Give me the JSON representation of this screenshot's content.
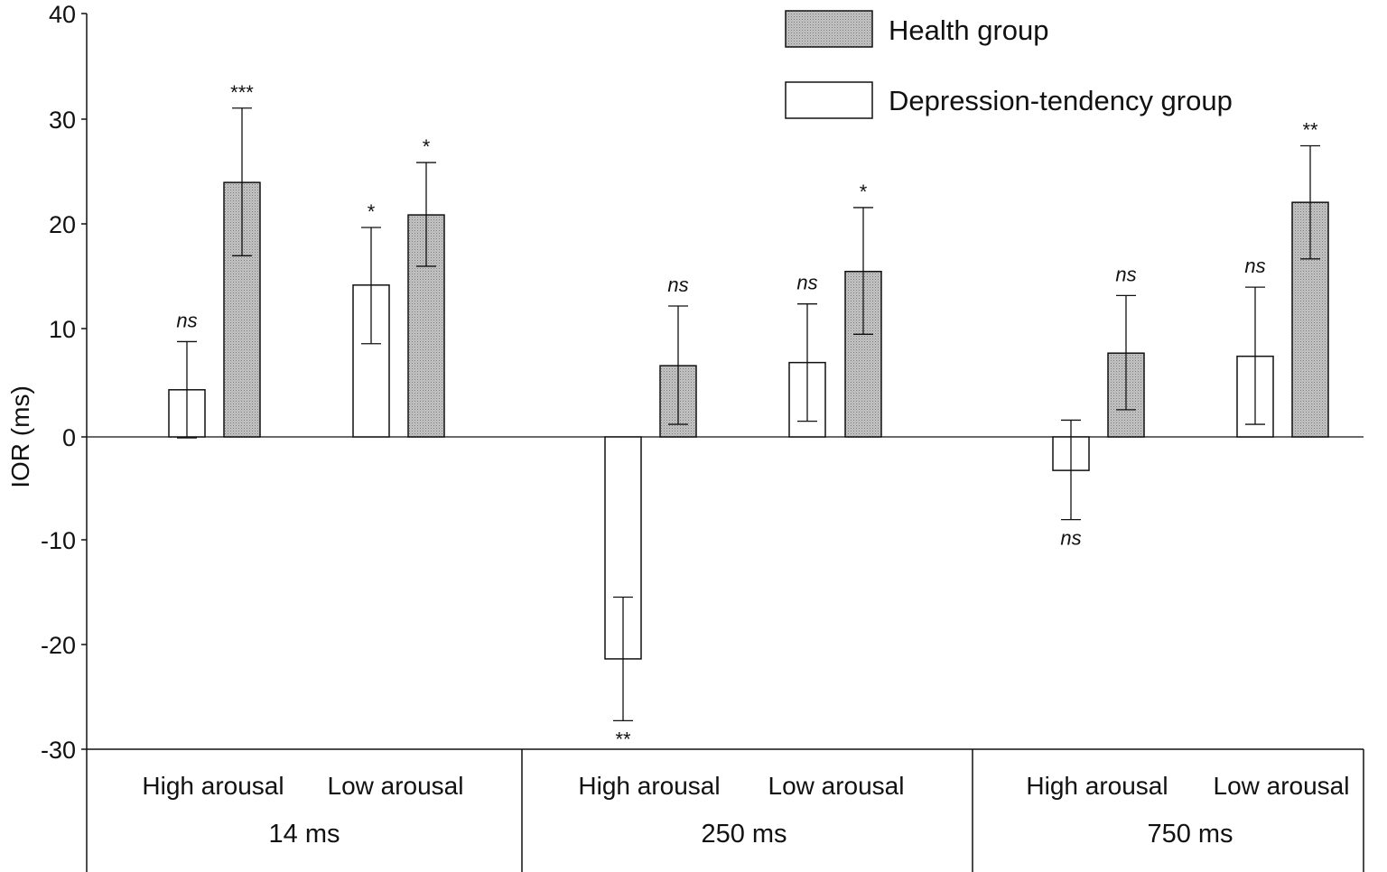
{
  "chart_data": {
    "type": "bar",
    "title": "",
    "xlabel": "",
    "ylabel": "IOR (ms)",
    "ylim": [
      -30,
      40
    ],
    "yticks": [
      "40",
      "30",
      "20",
      "10",
      "0",
      "-10",
      "-20",
      "-30"
    ],
    "ytick_values": [
      40,
      30,
      20,
      10,
      0,
      -10,
      -20,
      -30
    ],
    "groups": [
      "14 ms",
      "250 ms",
      "750 ms"
    ],
    "conditions": [
      "High arousal",
      "Low arousal"
    ],
    "legend_position": "top-right",
    "series": [
      {
        "name": "Health group",
        "style": "shaded",
        "fill": "#bdbdbd",
        "values": [
          24.3,
          21.2,
          6.8,
          15.8,
          8.0,
          22.4
        ],
        "err_low": [
          17.3,
          16.3,
          1.2,
          9.8,
          2.6,
          17.0
        ],
        "err_high": [
          31.4,
          26.2,
          12.5,
          21.9,
          13.5,
          27.8
        ],
        "sig": [
          "***",
          "*",
          "ns",
          "*",
          "ns",
          "**"
        ]
      },
      {
        "name": "Depression-tendency group",
        "style": "open",
        "fill": "#ffffff",
        "values": [
          4.5,
          14.5,
          -21.2,
          7.1,
          -3.2,
          7.7
        ],
        "err_low": [
          -0.1,
          8.9,
          -27.1,
          1.5,
          -7.9,
          1.2
        ],
        "err_high": [
          9.1,
          20.0,
          -15.3,
          12.7,
          1.6,
          14.3
        ],
        "sig": [
          "ns",
          "*",
          "**",
          "ns",
          "ns",
          "ns"
        ]
      }
    ]
  },
  "colors": {
    "axis": "#111111",
    "bar_stroke": "#111111",
    "health_fill": "#bdbdbd",
    "depression_fill": "#ffffff"
  }
}
